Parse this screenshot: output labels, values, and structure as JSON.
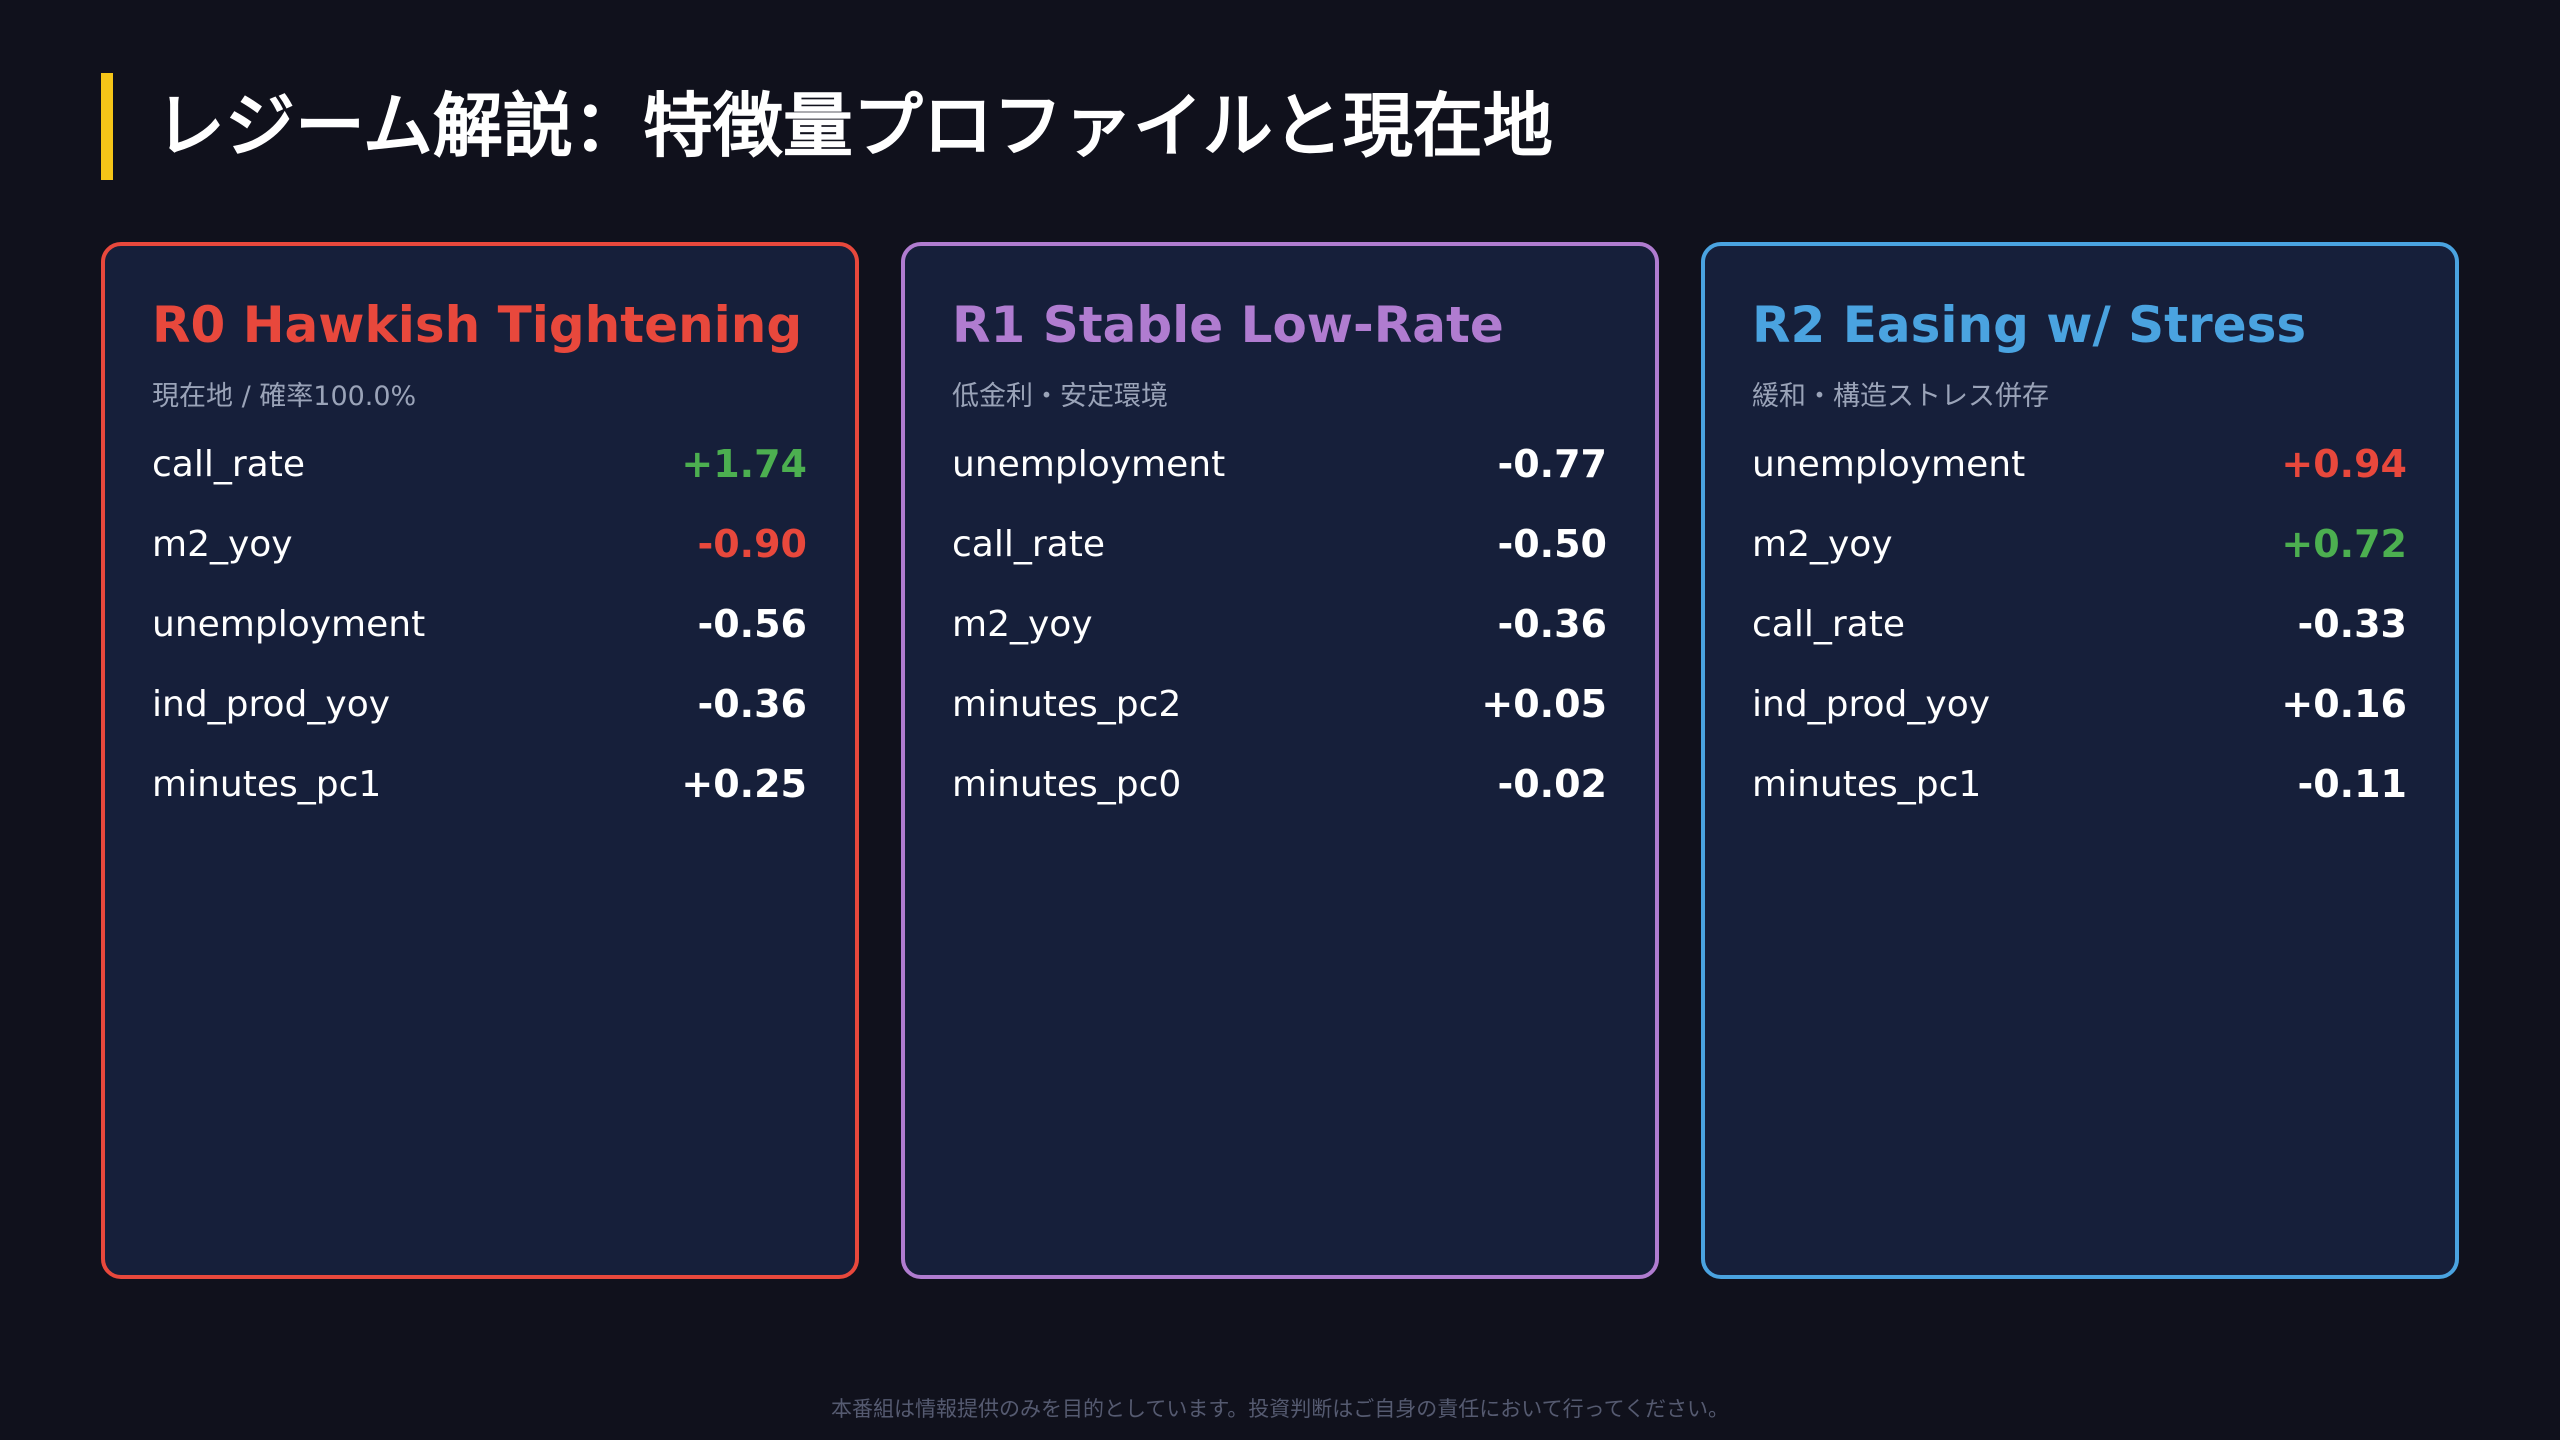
{
  "header": {
    "title": "レジーム解説：特徴量プロファイルと現在地"
  },
  "cards": [
    {
      "title": "R0 Hawkish Tightening",
      "subtitle": "現在地 / 確率100.0%",
      "color": "#e8483c",
      "rows": [
        {
          "name": "call_rate",
          "value": "+1.74",
          "color": "#4caf50"
        },
        {
          "name": "m2_yoy",
          "value": "-0.90",
          "color": "#e8483c"
        },
        {
          "name": "unemployment",
          "value": "-0.56",
          "color": "#ffffff"
        },
        {
          "name": "ind_prod_yoy",
          "value": "-0.36",
          "color": "#ffffff"
        },
        {
          "name": "minutes_pc1",
          "value": "+0.25",
          "color": "#ffffff"
        }
      ]
    },
    {
      "title": "R1 Stable Low-Rate",
      "subtitle": "低金利・安定環境",
      "color": "#b07cd0",
      "rows": [
        {
          "name": "unemployment",
          "value": "-0.77",
          "color": "#ffffff"
        },
        {
          "name": "call_rate",
          "value": "-0.50",
          "color": "#ffffff"
        },
        {
          "name": "m2_yoy",
          "value": "-0.36",
          "color": "#ffffff"
        },
        {
          "name": "minutes_pc2",
          "value": "+0.05",
          "color": "#ffffff"
        },
        {
          "name": "minutes_pc0",
          "value": "-0.02",
          "color": "#ffffff"
        }
      ]
    },
    {
      "title": "R2 Easing w/ Stress",
      "subtitle": "緩和・構造ストレス併存",
      "color": "#4aa3e0",
      "rows": [
        {
          "name": "unemployment",
          "value": "+0.94",
          "color": "#e8483c"
        },
        {
          "name": "m2_yoy",
          "value": "+0.72",
          "color": "#4caf50"
        },
        {
          "name": "call_rate",
          "value": "-0.33",
          "color": "#ffffff"
        },
        {
          "name": "ind_prod_yoy",
          "value": "+0.16",
          "color": "#ffffff"
        },
        {
          "name": "minutes_pc1",
          "value": "-0.11",
          "color": "#ffffff"
        }
      ]
    }
  ],
  "footer": {
    "text": "本番組は情報提供のみを目的としています。投資判断はご自身の責任において行ってください。"
  }
}
